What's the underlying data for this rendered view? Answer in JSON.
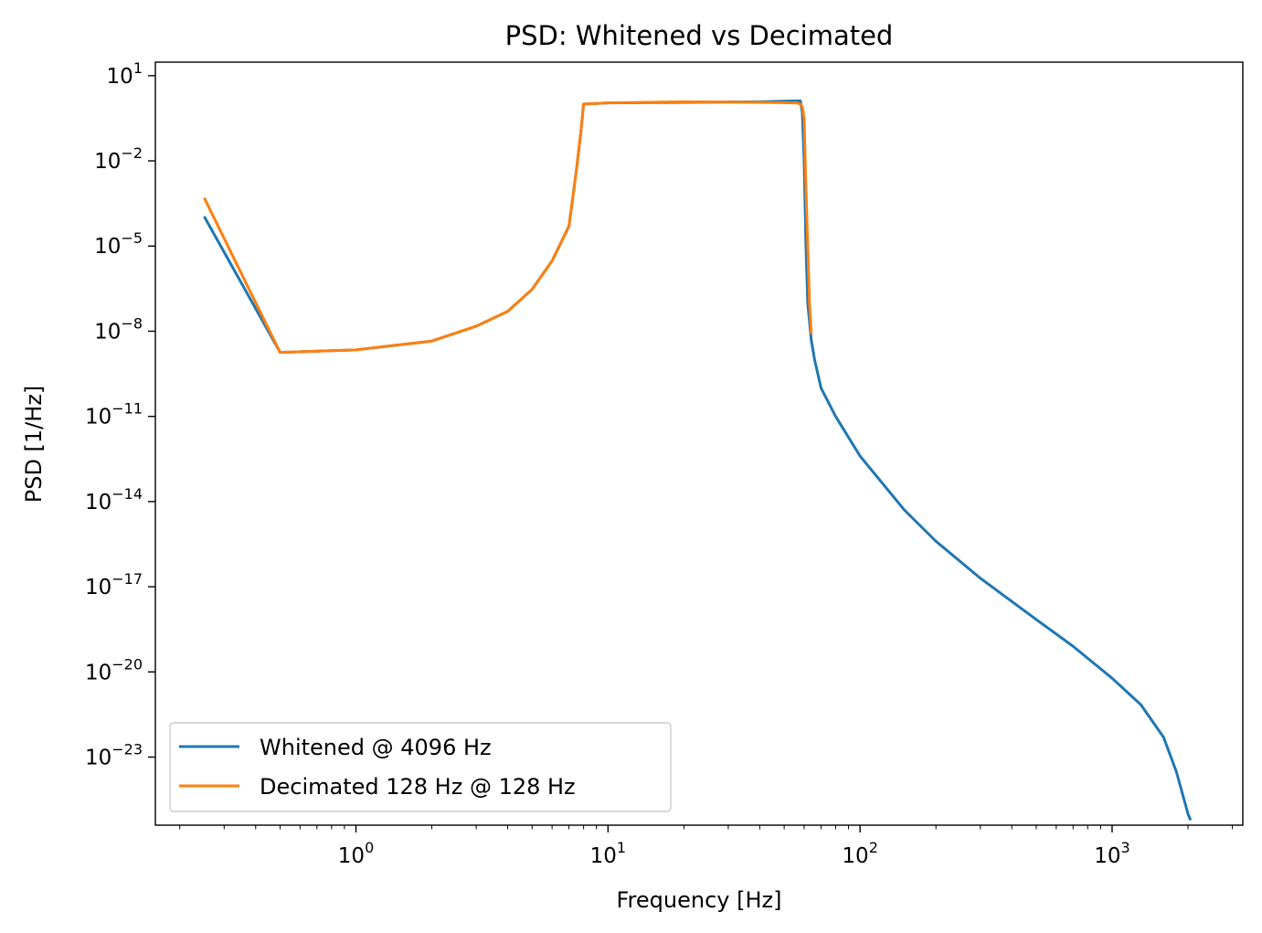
{
  "chart_data": {
    "type": "line",
    "title": "PSD: Whitened vs Decimated",
    "xlabel": "Frequency [Hz]",
    "ylabel": "PSD [1/Hz]",
    "xscale": "log",
    "yscale": "log",
    "xlim": [
      0.16,
      3300
    ],
    "ylim": [
      4e-26,
      30
    ],
    "x_ticks": [
      {
        "base": "10",
        "exp": "0",
        "value": 1
      },
      {
        "base": "10",
        "exp": "1",
        "value": 10
      },
      {
        "base": "10",
        "exp": "2",
        "value": 100
      },
      {
        "base": "10",
        "exp": "3",
        "value": 1000
      }
    ],
    "y_ticks": [
      {
        "base": "10",
        "exp": "1",
        "value": 10
      },
      {
        "base": "10",
        "exp": "−2",
        "value": 0.01
      },
      {
        "base": "10",
        "exp": "−5",
        "value": 1e-05
      },
      {
        "base": "10",
        "exp": "−8",
        "value": 1e-08
      },
      {
        "base": "10",
        "exp": "−11",
        "value": 1e-11
      },
      {
        "base": "10",
        "exp": "−14",
        "value": 1e-14
      },
      {
        "base": "10",
        "exp": "−17",
        "value": 1e-17
      },
      {
        "base": "10",
        "exp": "−20",
        "value": 1e-20
      },
      {
        "base": "10",
        "exp": "−23",
        "value": 1e-23
      }
    ],
    "grid": false,
    "legend_position": "lower-left",
    "series": [
      {
        "name": "Whitened @ 4096 Hz",
        "color": "#1f77b4",
        "points": [
          [
            0.25,
            0.00011
          ],
          [
            0.5,
            1.8e-09
          ],
          [
            1,
            2.2e-09
          ],
          [
            2,
            4.5e-09
          ],
          [
            3,
            1.5e-08
          ],
          [
            4,
            5e-08
          ],
          [
            5,
            3e-07
          ],
          [
            6,
            3e-06
          ],
          [
            7,
            5e-05
          ],
          [
            7.5,
            0.005
          ],
          [
            7.8,
            0.1
          ],
          [
            8,
            1.0
          ],
          [
            10,
            1.1
          ],
          [
            20,
            1.15
          ],
          [
            40,
            1.2
          ],
          [
            56,
            1.3
          ],
          [
            58,
            1.3
          ],
          [
            59,
            0.5
          ],
          [
            60,
            0.01
          ],
          [
            61,
            1e-05
          ],
          [
            62,
            1e-07
          ],
          [
            64,
            5e-09
          ],
          [
            66,
            1e-09
          ],
          [
            70,
            1e-10
          ],
          [
            80,
            1e-11
          ],
          [
            100,
            4e-13
          ],
          [
            150,
            5e-15
          ],
          [
            200,
            4e-16
          ],
          [
            300,
            2e-17
          ],
          [
            500,
            7e-19
          ],
          [
            700,
            8e-20
          ],
          [
            1000,
            6e-21
          ],
          [
            1300,
            7e-22
          ],
          [
            1600,
            5e-23
          ],
          [
            1800,
            3e-24
          ],
          [
            2000,
            1e-25
          ],
          [
            2048,
            6e-26
          ]
        ]
      },
      {
        "name": "Decimated 128 Hz @ 128 Hz",
        "color": "#ff7f0e",
        "points": [
          [
            0.25,
            0.0005
          ],
          [
            0.5,
            1.8e-09
          ],
          [
            1,
            2.2e-09
          ],
          [
            2,
            4.5e-09
          ],
          [
            3,
            1.5e-08
          ],
          [
            4,
            5e-08
          ],
          [
            5,
            3e-07
          ],
          [
            6,
            3e-06
          ],
          [
            7,
            5e-05
          ],
          [
            7.5,
            0.005
          ],
          [
            7.8,
            0.1
          ],
          [
            8,
            1.0
          ],
          [
            10,
            1.1
          ],
          [
            20,
            1.2
          ],
          [
            40,
            1.15
          ],
          [
            56,
            1.1
          ],
          [
            58,
            1.0
          ],
          [
            59,
            0.8
          ],
          [
            60,
            0.3
          ],
          [
            61,
            0.001
          ],
          [
            62,
            1e-05
          ],
          [
            63,
            1e-07
          ],
          [
            64,
            8e-09
          ]
        ]
      }
    ]
  }
}
